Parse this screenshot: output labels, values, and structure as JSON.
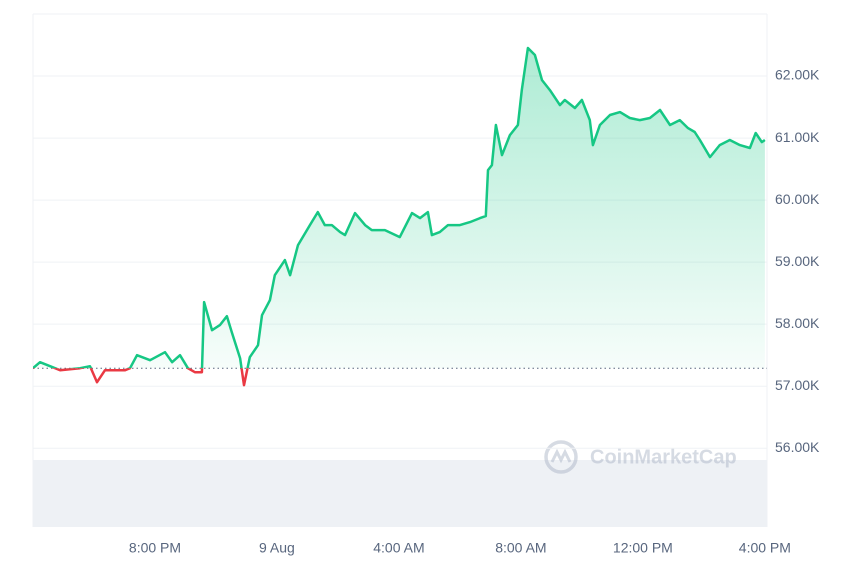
{
  "chart_data": {
    "type": "line",
    "watermark": "CoinMarketCap",
    "x": [
      -8.0,
      -7.77,
      -7.44,
      -7.11,
      -6.79,
      -6.46,
      -6.13,
      -5.9,
      -5.64,
      -5.21,
      -4.98,
      -4.82,
      -4.59,
      -4.16,
      -3.67,
      -3.44,
      -3.18,
      -2.92,
      -2.69,
      -2.46,
      -2.39,
      -2.13,
      -1.87,
      -1.64,
      -1.48,
      -1.21,
      -1.08,
      -0.89,
      -0.62,
      -0.49,
      -0.23,
      -0.07,
      0.26,
      0.43,
      0.69,
      1.08,
      1.34,
      1.57,
      1.8,
      2.07,
      2.23,
      2.56,
      2.89,
      3.11,
      3.54,
      4.03,
      4.43,
      4.69,
      4.95,
      5.08,
      5.34,
      5.61,
      6.0,
      6.33,
      6.66,
      6.85,
      6.92,
      7.05,
      7.18,
      7.38,
      7.64,
      7.9,
      8.03,
      8.23,
      8.46,
      8.69,
      8.95,
      9.28,
      9.44,
      9.77,
      10.0,
      10.26,
      10.36,
      10.59,
      10.92,
      11.25,
      11.57,
      11.9,
      12.23,
      12.56,
      12.89,
      13.21,
      13.48,
      13.7,
      13.87,
      14.2,
      14.52,
      14.85,
      15.18,
      15.51,
      15.7,
      15.9,
      16.0
    ],
    "values": [
      57290,
      57387,
      57323,
      57258,
      57274,
      57290,
      57323,
      57064,
      57258,
      57258,
      57258,
      57290,
      57500,
      57419,
      57548,
      57387,
      57500,
      57290,
      57225,
      57225,
      58355,
      57903,
      57984,
      58129,
      57871,
      57451,
      57016,
      57467,
      57661,
      58145,
      58387,
      58790,
      59032,
      58790,
      59274,
      59597,
      59806,
      59597,
      59597,
      59484,
      59435,
      59790,
      59597,
      59516,
      59516,
      59403,
      59790,
      59710,
      59806,
      59435,
      59484,
      59597,
      59597,
      59645,
      59710,
      59742,
      60484,
      60564,
      61210,
      60726,
      61048,
      61210,
      61774,
      62452,
      62339,
      61935,
      61774,
      61532,
      61613,
      61484,
      61613,
      61290,
      60887,
      61210,
      61371,
      61419,
      61323,
      61290,
      61323,
      61452,
      61210,
      61290,
      61161,
      61097,
      60968,
      60693,
      60887,
      60968,
      60887,
      60839,
      61081,
      60935,
      60968
    ],
    "baseline": 57290,
    "color": "#16c784",
    "down_color": "#ea3943",
    "xlim": [
      -8,
      16.07
    ],
    "xticks": [
      {
        "value": -4,
        "label": "8:00 PM"
      },
      {
        "value": 0,
        "label": "9 Aug"
      },
      {
        "value": 4,
        "label": "4:00 AM"
      },
      {
        "value": 8,
        "label": "8:00 AM"
      },
      {
        "value": 12,
        "label": "12:00 PM"
      },
      {
        "value": 16,
        "label": "4:00 PM"
      }
    ],
    "ylim": [
      54730,
      63000
    ],
    "yticks": [
      {
        "value": 62000,
        "label": "62.00K"
      },
      {
        "value": 61000,
        "label": "61.00K"
      },
      {
        "value": 60000,
        "label": "60.00K"
      },
      {
        "value": 59000,
        "label": "59.00K"
      },
      {
        "value": 58000,
        "label": "58.00K"
      },
      {
        "value": 57000,
        "label": "57.00K"
      },
      {
        "value": 56000,
        "label": "56.00K"
      }
    ],
    "grid": true
  }
}
